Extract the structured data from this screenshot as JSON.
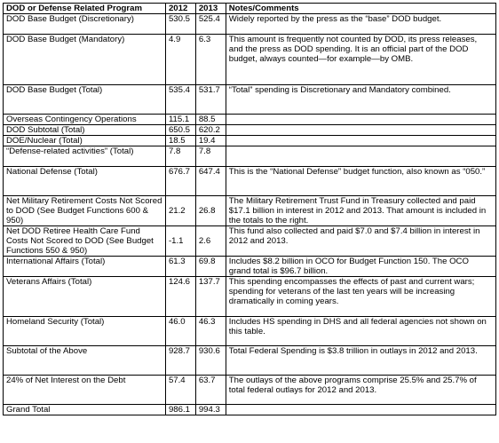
{
  "headers": [
    "DOD or Defense Related Program",
    "2012",
    "2013",
    "Notes/Comments"
  ],
  "rows": [
    {
      "program": "DOD Base Budget (Discretionary)",
      "y2012": "530.5",
      "y2013": "525.4",
      "notes": "Widely reported by the press as the “base” DOD budget."
    },
    {
      "program": "DOD Base Budget (Mandatory)",
      "y2012": "4.9",
      "y2013": "6.3",
      "notes": "This amount is frequently not counted by DOD, its press releases, and the press as DOD spending.  It is an official part of the DOD budget, always counted—for example—by OMB."
    },
    {
      "program": "DOD Base Budget (Total)",
      "y2012": "535.4",
      "y2013": "531.7",
      "notes": "“Total” spending is Discretionary and Mandatory combined."
    },
    {
      "program": "Overseas Contingency Operations",
      "y2012": "115.1",
      "y2013": "88.5",
      "notes": ""
    },
    {
      "program": "DOD Subtotal (Total)",
      "y2012": "650.5",
      "y2013": "620.2",
      "notes": ""
    },
    {
      "program": "DOE/Nuclear (Total)",
      "y2012": "18.5",
      "y2013": "19.4",
      "notes": ""
    },
    {
      "program": "“Defense-related activities” (Total)",
      "y2012": "7.8",
      "y2013": "7.8",
      "notes": ""
    },
    {
      "program": "National Defense (Total)",
      "y2012": "676.7",
      "y2013": "647.4",
      "notes": "This is the “National Defense” budget function, also known as “050.”"
    },
    {
      "program": "Net Military Retirement Costs Not Scored to DOD (See Budget Functions 600 & 950)",
      "y2012": "21.2",
      "y2013": "26.8",
      "notes": "The Military Retirement Trust Fund in Treasury collected and paid $17.1 billion in interest in 2012 and 2013.  That amount is included in the totals to the right."
    },
    {
      "program": "Net DOD Retiree Health Care Fund Costs Not Scored to DOD (See Budget Functions 550 & 950)",
      "y2012": "-1.1",
      "y2013": "2.6",
      "notes": "This fund also collected and paid $7.0 and $7.4 billion in interest in 2012 and 2013."
    },
    {
      "program": "International Affairs (Total)",
      "y2012": "61.3",
      "y2013": "69.8",
      "notes": "Includes $8.2 billion in OCO for Budget Function 150.  The OCO grand total is $96.7 billion."
    },
    {
      "program": "Veterans Affairs (Total)",
      "y2012": "124.6",
      "y2013": "137.7",
      "notes": "This spending encompasses the effects of past and current wars; spending for veterans of the last ten years will be increasing dramatically in coming years."
    },
    {
      "program": "Homeland Security (Total)",
      "y2012": "46.0",
      "y2013": "46.3",
      "notes": "Includes HS spending in DHS and all federal agencies not shown on this table."
    },
    {
      "program": "Subtotal of the Above",
      "y2012": "928.7",
      "y2013": "930.6",
      "notes": "Total Federal Spending is $3.8 trillion in outlays in 2012 and 2013."
    },
    {
      "program": "24% of Net Interest on the Debt",
      "y2012": "57.4",
      "y2013": "63.7",
      "notes": "The outlays of the above programs comprise 25.5% and 25.7% of total federal outlays for 2012 and 2013."
    },
    {
      "program": "Grand Total",
      "y2012": "986.1",
      "y2013": "994.3",
      "notes": ""
    }
  ]
}
